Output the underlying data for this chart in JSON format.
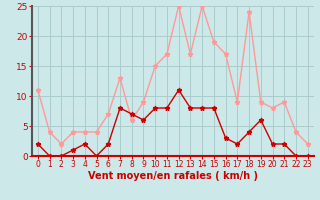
{
  "hours": [
    0,
    1,
    2,
    3,
    4,
    5,
    6,
    7,
    8,
    9,
    10,
    11,
    12,
    13,
    14,
    15,
    16,
    17,
    18,
    19,
    20,
    21,
    22,
    23
  ],
  "wind_avg": [
    2,
    0,
    0,
    1,
    2,
    0,
    2,
    8,
    7,
    6,
    8,
    8,
    11,
    8,
    8,
    8,
    3,
    2,
    4,
    6,
    2,
    2,
    0,
    0
  ],
  "wind_gust": [
    11,
    4,
    2,
    4,
    4,
    4,
    7,
    13,
    6,
    9,
    15,
    17,
    25,
    17,
    25,
    19,
    17,
    9,
    24,
    9,
    8,
    9,
    4,
    2
  ],
  "bg_color": "#cce8e8",
  "grid_color": "#aacccc",
  "avg_color": "#cc0000",
  "gust_color": "#ff9999",
  "xlabel": "Vent moyen/en rafales ( km/h )",
  "xlabel_color": "#cc0000",
  "tick_color": "#cc0000",
  "ylim": [
    0,
    25
  ],
  "yticks": [
    0,
    5,
    10,
    15,
    20,
    25
  ],
  "left_spine_color": "#555555"
}
